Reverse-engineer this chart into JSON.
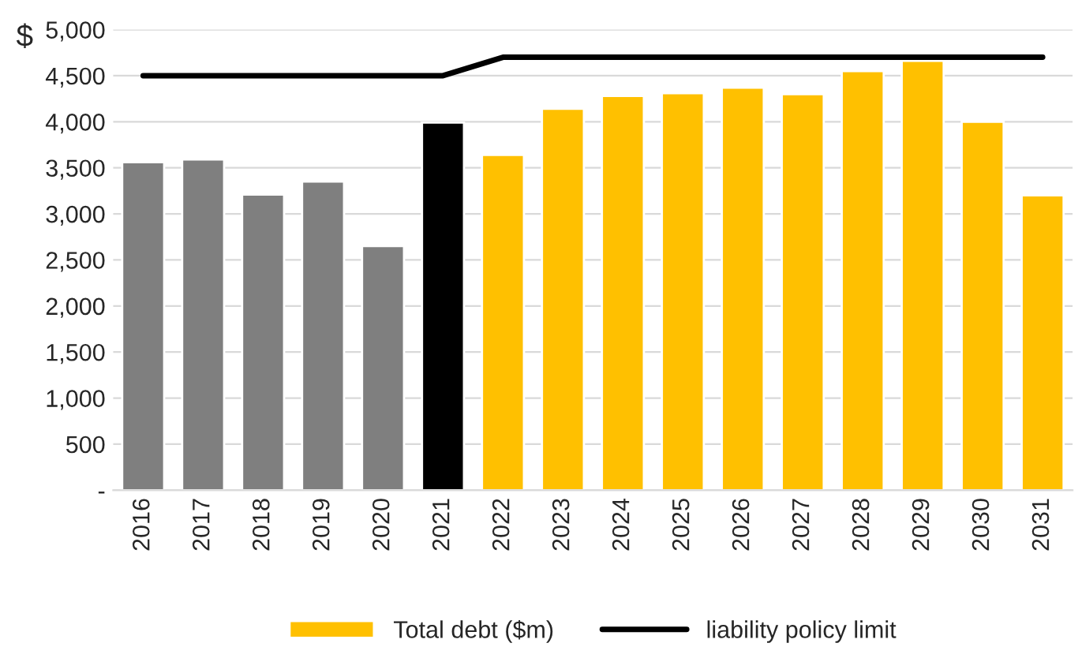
{
  "chart_data": {
    "type": "bar",
    "ylabel": "$",
    "categories": [
      "2016",
      "2017",
      "2018",
      "2019",
      "2020",
      "2021",
      "2022",
      "2023",
      "2024",
      "2025",
      "2026",
      "2027",
      "2028",
      "2029",
      "2030",
      "2031"
    ],
    "series": [
      {
        "name": "Total debt ($m)",
        "color": "#ffc000",
        "colors": [
          "#7f7f7f",
          "#7f7f7f",
          "#7f7f7f",
          "#7f7f7f",
          "#7f7f7f",
          "#000000",
          "#ffc000",
          "#ffc000",
          "#ffc000",
          "#ffc000",
          "#ffc000",
          "#ffc000",
          "#ffc000",
          "#ffc000",
          "#ffc000",
          "#ffc000"
        ],
        "values": [
          3560,
          3590,
          3210,
          3350,
          2650,
          3990,
          3640,
          4140,
          4280,
          4310,
          4370,
          4300,
          4550,
          4660,
          4000,
          3200
        ]
      },
      {
        "name": "liability policy limit",
        "type": "line",
        "color": "#000000",
        "values": [
          4500,
          4500,
          4500,
          4500,
          4500,
          4500,
          4700,
          4700,
          4700,
          4700,
          4700,
          4700,
          4700,
          4700,
          4700,
          4700
        ]
      }
    ],
    "ylim": [
      0,
      5000
    ],
    "yticks": [
      {
        "value": 0,
        "label": "-"
      },
      500,
      {
        "value": 1000,
        "label": "1,000"
      },
      {
        "value": 1500,
        "label": "1,500"
      },
      {
        "value": 2000,
        "label": "2,000"
      },
      {
        "value": 2500,
        "label": "2,500"
      },
      {
        "value": 3000,
        "label": "3,000"
      },
      {
        "value": 3500,
        "label": "3,500"
      },
      {
        "value": 4000,
        "label": "4,000"
      },
      {
        "value": 4500,
        "label": "4,500"
      },
      {
        "value": 5000,
        "label": "5,000"
      }
    ],
    "grid": "y",
    "legend": "bottom",
    "marker": "none",
    "line_style": "solid"
  }
}
